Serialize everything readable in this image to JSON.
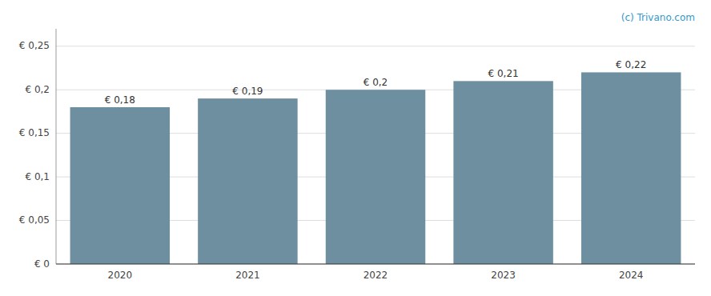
{
  "chart_data": {
    "type": "bar",
    "annotation": "(c) Trivano.com",
    "categories": [
      "2020",
      "2021",
      "2022",
      "2023",
      "2024"
    ],
    "values": [
      0.18,
      0.19,
      0.2,
      0.21,
      0.22
    ],
    "value_labels": [
      "€ 0,18",
      "€ 0,19",
      "€ 0,2",
      "€ 0,21",
      "€ 0,22"
    ],
    "color": "#6d8fa0",
    "ylim": [
      0,
      0.27
    ],
    "yticks": [
      {
        "value": 0,
        "label": "€ 0"
      },
      {
        "value": 0.05,
        "label": "€ 0,05"
      },
      {
        "value": 0.1,
        "label": "€ 0,1"
      },
      {
        "value": 0.15,
        "label": "€ 0,15"
      },
      {
        "value": 0.2,
        "label": "€ 0,2"
      },
      {
        "value": 0.25,
        "label": "€ 0,25"
      }
    ],
    "grid": true,
    "data_labels": true
  }
}
